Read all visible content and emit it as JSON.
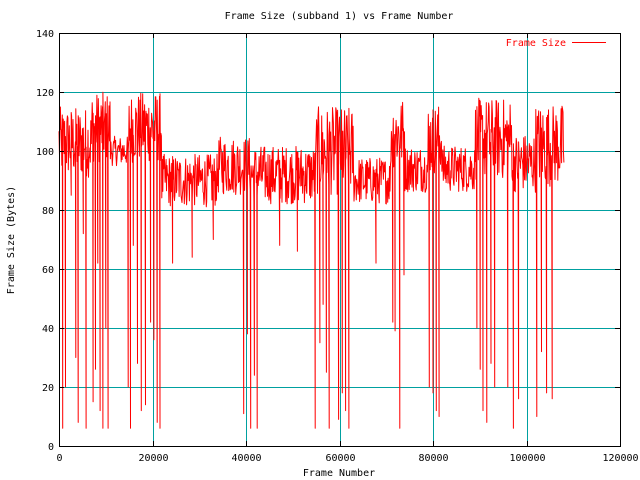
{
  "chart_data": {
    "type": "line",
    "title": "Frame Size (subband 1) vs Frame Number",
    "xlabel": "Frame Number",
    "ylabel": "Frame Size (Bytes)",
    "xlim": [
      0,
      120000
    ],
    "ylim": [
      0,
      140
    ],
    "xticks": [
      0,
      20000,
      40000,
      60000,
      80000,
      100000,
      120000
    ],
    "yticks": [
      0,
      20,
      40,
      60,
      80,
      100,
      120,
      140
    ],
    "grid": true,
    "legend_position": "top-right",
    "colors": {
      "series": "#ff0000",
      "grid": "#00a0a0",
      "axis": "#000000"
    },
    "series": [
      {
        "name": "Frame Size",
        "segments": [
          {
            "x_start": 0,
            "x_end": 7000,
            "base": 103,
            "amp": 12
          },
          {
            "x_start": 7000,
            "x_end": 11000,
            "base": 108,
            "amp": 12
          },
          {
            "x_start": 11000,
            "x_end": 15000,
            "base": 100,
            "amp": 5
          },
          {
            "x_start": 15000,
            "x_end": 22000,
            "base": 108,
            "amp": 12
          },
          {
            "x_start": 22000,
            "x_end": 34000,
            "base": 90,
            "amp": 9
          },
          {
            "x_start": 34000,
            "x_end": 41000,
            "base": 95,
            "amp": 10
          },
          {
            "x_start": 41000,
            "x_end": 55000,
            "base": 92,
            "amp": 10
          },
          {
            "x_start": 55000,
            "x_end": 63000,
            "base": 100,
            "amp": 15
          },
          {
            "x_start": 63000,
            "x_end": 71000,
            "base": 90,
            "amp": 8
          },
          {
            "x_start": 71000,
            "x_end": 74000,
            "base": 106,
            "amp": 12
          },
          {
            "x_start": 74000,
            "x_end": 79000,
            "base": 94,
            "amp": 8
          },
          {
            "x_start": 79000,
            "x_end": 82000,
            "base": 104,
            "amp": 12
          },
          {
            "x_start": 82000,
            "x_end": 89000,
            "base": 94,
            "amp": 8
          },
          {
            "x_start": 89000,
            "x_end": 97000,
            "base": 104,
            "amp": 14
          },
          {
            "x_start": 97000,
            "x_end": 102000,
            "base": 96,
            "amp": 10
          },
          {
            "x_start": 102000,
            "x_end": 108000,
            "base": 102,
            "amp": 14
          }
        ],
        "dips": [
          {
            "x": 800,
            "y": 6
          },
          {
            "x": 1400,
            "y": 20
          },
          {
            "x": 2600,
            "y": 85
          },
          {
            "x": 3600,
            "y": 30
          },
          {
            "x": 4100,
            "y": 8
          },
          {
            "x": 5200,
            "y": 72
          },
          {
            "x": 5800,
            "y": 6
          },
          {
            "x": 7300,
            "y": 15
          },
          {
            "x": 7800,
            "y": 26
          },
          {
            "x": 8300,
            "y": 62
          },
          {
            "x": 8800,
            "y": 12
          },
          {
            "x": 9400,
            "y": 6
          },
          {
            "x": 10000,
            "y": 40
          },
          {
            "x": 10500,
            "y": 6
          },
          {
            "x": 14800,
            "y": 20
          },
          {
            "x": 15300,
            "y": 6
          },
          {
            "x": 15900,
            "y": 68
          },
          {
            "x": 16800,
            "y": 28
          },
          {
            "x": 17600,
            "y": 12
          },
          {
            "x": 18500,
            "y": 14
          },
          {
            "x": 19600,
            "y": 42
          },
          {
            "x": 20300,
            "y": 36
          },
          {
            "x": 21000,
            "y": 8
          },
          {
            "x": 21600,
            "y": 6
          },
          {
            "x": 24300,
            "y": 62
          },
          {
            "x": 28500,
            "y": 64
          },
          {
            "x": 33000,
            "y": 70
          },
          {
            "x": 39500,
            "y": 11
          },
          {
            "x": 40300,
            "y": 38
          },
          {
            "x": 41000,
            "y": 6
          },
          {
            "x": 41800,
            "y": 24
          },
          {
            "x": 42400,
            "y": 6
          },
          {
            "x": 47200,
            "y": 68
          },
          {
            "x": 51000,
            "y": 66
          },
          {
            "x": 54800,
            "y": 6
          },
          {
            "x": 55800,
            "y": 35
          },
          {
            "x": 56500,
            "y": 48
          },
          {
            "x": 57200,
            "y": 25
          },
          {
            "x": 57800,
            "y": 6
          },
          {
            "x": 59800,
            "y": 9
          },
          {
            "x": 60600,
            "y": 18
          },
          {
            "x": 61300,
            "y": 12
          },
          {
            "x": 62000,
            "y": 6
          },
          {
            "x": 67800,
            "y": 62
          },
          {
            "x": 71400,
            "y": 42
          },
          {
            "x": 71900,
            "y": 39
          },
          {
            "x": 72900,
            "y": 6
          },
          {
            "x": 73800,
            "y": 58
          },
          {
            "x": 79200,
            "y": 20
          },
          {
            "x": 80000,
            "y": 18
          },
          {
            "x": 80700,
            "y": 12
          },
          {
            "x": 81300,
            "y": 10
          },
          {
            "x": 89400,
            "y": 40
          },
          {
            "x": 90100,
            "y": 26
          },
          {
            "x": 90700,
            "y": 12
          },
          {
            "x": 91500,
            "y": 8
          },
          {
            "x": 92400,
            "y": 28
          },
          {
            "x": 93200,
            "y": 20
          },
          {
            "x": 96000,
            "y": 20
          },
          {
            "x": 97200,
            "y": 6
          },
          {
            "x": 98300,
            "y": 16
          },
          {
            "x": 102200,
            "y": 10
          },
          {
            "x": 103200,
            "y": 32
          },
          {
            "x": 104300,
            "y": 18
          },
          {
            "x": 105500,
            "y": 16
          }
        ]
      }
    ]
  }
}
